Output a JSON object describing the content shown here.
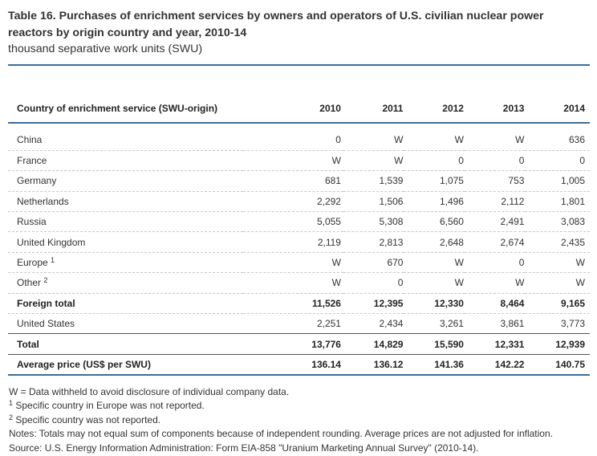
{
  "title": "Table 16. Purchases of enrichment services by owners and operators of U.S. civilian nuclear power reactors by origin country and year, 2010-14",
  "units": "thousand separative work units (SWU)",
  "table": {
    "headers": [
      "Country of enrichment service (SWU-origin)",
      "2010",
      "2011",
      "2012",
      "2013",
      "2014"
    ],
    "rows": [
      {
        "label": "China",
        "sup": "",
        "values": [
          "0",
          "W",
          "W",
          "W",
          "636"
        ]
      },
      {
        "label": "France",
        "sup": "",
        "values": [
          "W",
          "W",
          "0",
          "0",
          "0"
        ]
      },
      {
        "label": "Germany",
        "sup": "",
        "values": [
          "681",
          "1,539",
          "1,075",
          "753",
          "1,005"
        ]
      },
      {
        "label": "Netherlands",
        "sup": "",
        "values": [
          "2,292",
          "1,506",
          "1,496",
          "2,112",
          "1,801"
        ]
      },
      {
        "label": "Russia",
        "sup": "",
        "values": [
          "5,055",
          "5,308",
          "6,560",
          "2,491",
          "3,083"
        ]
      },
      {
        "label": "United Kingdom",
        "sup": "",
        "values": [
          "2,119",
          "2,813",
          "2,648",
          "2,674",
          "2,435"
        ]
      },
      {
        "label": "Europe",
        "sup": "1",
        "values": [
          "W",
          "670",
          "W",
          "0",
          "W"
        ]
      },
      {
        "label": "Other",
        "sup": "2",
        "values": [
          "W",
          "0",
          "W",
          "W",
          "W"
        ]
      },
      {
        "label": "Foreign total",
        "sup": "",
        "values": [
          "11,526",
          "12,395",
          "12,330",
          "8,464",
          "9,165"
        ]
      },
      {
        "label": "United States",
        "sup": "",
        "values": [
          "2,251",
          "2,434",
          "3,261",
          "3,861",
          "3,773"
        ]
      },
      {
        "label": "Total",
        "sup": "",
        "values": [
          "13,776",
          "14,829",
          "15,590",
          "12,331",
          "12,939"
        ]
      },
      {
        "label": "Average price (US$ per SWU)",
        "sup": "",
        "values": [
          "136.14",
          "136.12",
          "141.36",
          "142.22",
          "140.75"
        ]
      }
    ]
  },
  "notes": {
    "withheld": "W = Data withheld to avoid disclosure of individual company data.",
    "fn1_mark": "1",
    "fn1": " Specific country in Europe was not reported.",
    "fn2_mark": "2",
    "fn2": " Specific country was not reported.",
    "notes_line": "Notes: Totals may not equal sum of components because of independent rounding. Average prices are not adjusted for inflation.",
    "source": "Source: U.S. Energy Information Administration: Form EIA-858 \"Uranium Marketing Annual Survey\" (2010-14)."
  },
  "colors": {
    "rule": "#3b6e99",
    "text": "#333333",
    "dashed": "#c9c9c9"
  }
}
